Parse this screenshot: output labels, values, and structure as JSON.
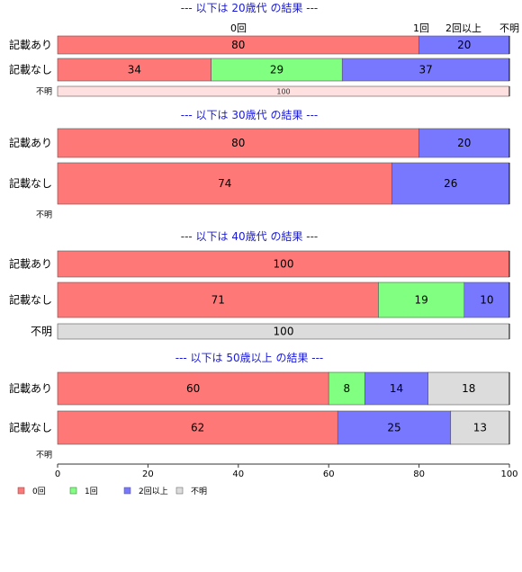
{
  "chart_data": {
    "type": "bar",
    "orientation": "horizontal",
    "stacked": true,
    "colors": {
      "0回": "#ff7878",
      "1回": "#80ff80",
      "2回以上": "#7878ff",
      "不明": "#dcdcdc",
      "不明_light": "#ffe0e0"
    },
    "top_labels": [
      "0回",
      "1回",
      "2回以上",
      "不明"
    ],
    "legend": [
      "0回",
      "1回",
      "2回以上",
      "不明"
    ],
    "legend_position": "bottom-left",
    "xlim": [
      0,
      100
    ],
    "x_ticks": [
      0,
      20,
      40,
      60,
      80,
      100
    ],
    "panels": [
      {
        "title": "--- 以下は 20歳代 の結果 ---",
        "rows": [
          {
            "label": "記載あり",
            "segments": [
              {
                "series": "0回",
                "value": 80
              },
              {
                "series": "2回以上",
                "value": 20
              }
            ]
          },
          {
            "label": "記載なし",
            "segments": [
              {
                "series": "0回",
                "value": 34
              },
              {
                "series": "1回",
                "value": 29
              },
              {
                "series": "2回以上",
                "value": 37
              }
            ]
          },
          {
            "label": "不明",
            "segments": [
              {
                "series": "不明",
                "value": 100
              }
            ]
          }
        ]
      },
      {
        "title": "--- 以下は 30歳代 の結果 ---",
        "rows": [
          {
            "label": "記載あり",
            "segments": [
              {
                "series": "0回",
                "value": 80
              },
              {
                "series": "2回以上",
                "value": 20
              }
            ]
          },
          {
            "label": "記載なし",
            "segments": [
              {
                "series": "0回",
                "value": 74
              },
              {
                "series": "2回以上",
                "value": 26
              }
            ]
          },
          {
            "label": "不明",
            "segments": []
          }
        ]
      },
      {
        "title": "--- 以下は 40歳代 の結果 ---",
        "rows": [
          {
            "label": "記載あり",
            "segments": [
              {
                "series": "0回",
                "value": 100
              }
            ]
          },
          {
            "label": "記載なし",
            "segments": [
              {
                "series": "0回",
                "value": 71
              },
              {
                "series": "1回",
                "value": 19
              },
              {
                "series": "2回以上",
                "value": 10
              }
            ]
          },
          {
            "label": "不明",
            "segments": [
              {
                "series": "不明",
                "value": 100
              }
            ]
          }
        ]
      },
      {
        "title": "--- 以下は 50歳以上 の結果 ---",
        "rows": [
          {
            "label": "記載あり",
            "segments": [
              {
                "series": "0回",
                "value": 60
              },
              {
                "series": "1回",
                "value": 8
              },
              {
                "series": "2回以上",
                "value": 14
              },
              {
                "series": "不明",
                "value": 18
              }
            ]
          },
          {
            "label": "記載なし",
            "segments": [
              {
                "series": "0回",
                "value": 62
              },
              {
                "series": "2回以上",
                "value": 25
              },
              {
                "series": "不明",
                "value": 13
              }
            ]
          },
          {
            "label": "不明",
            "segments": []
          }
        ]
      }
    ]
  }
}
